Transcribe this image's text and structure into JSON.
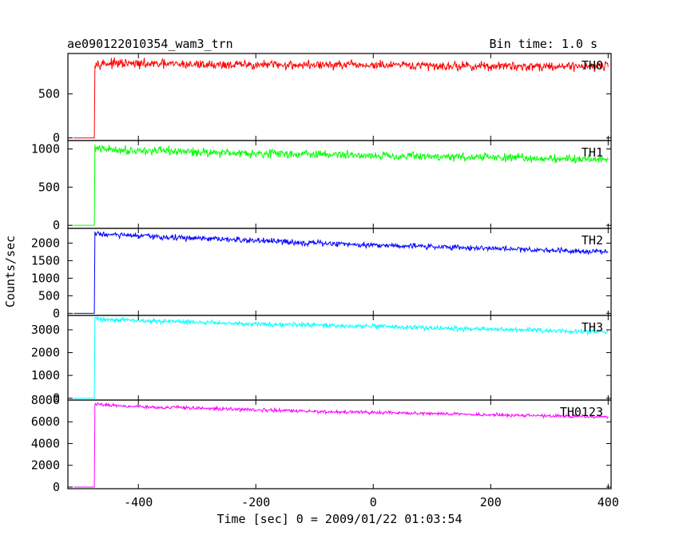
{
  "header": {
    "title": "ae090122010354_wam3_trn",
    "bin_time": "Bin time: 1.0 s"
  },
  "chart_data": {
    "type": "line",
    "title": "ae090122010354_wam3_trn",
    "subtitle": "Bin time: 1.0 s",
    "xlabel": "Time [sec] 0 = 2009/01/22 01:03:54",
    "ylabel": "Counts/sec",
    "xlim": [
      -520,
      405
    ],
    "x_ticks": [
      -400,
      -200,
      0,
      200,
      400
    ],
    "grid": false,
    "panels": [
      {
        "name": "TH0",
        "color": "#ff0000",
        "ylim": [
          -30,
          960
        ],
        "y_ticks": [
          0,
          500
        ],
        "series": [
          {
            "name": "TH0",
            "x": [
              -510,
              -475,
              -474,
              -470,
              -400,
              -300,
              -200,
              -100,
              0,
              100,
              200,
              300,
              400
            ],
            "values": [
              0,
              0,
              860,
              850,
              840,
              835,
              830,
              830,
              825,
              820,
              815,
              815,
              820
            ]
          }
        ]
      },
      {
        "name": "TH1",
        "color": "#00ff00",
        "ylim": [
          -40,
          1110
        ],
        "y_ticks": [
          0,
          500,
          1000
        ],
        "series": [
          {
            "name": "TH1",
            "x": [
              -510,
              -475,
              -474,
              -470,
              -400,
              -300,
              -200,
              -100,
              0,
              100,
              200,
              300,
              400
            ],
            "values": [
              0,
              0,
              1020,
              1000,
              980,
              960,
              945,
              930,
              915,
              900,
              890,
              875,
              865
            ]
          }
        ]
      },
      {
        "name": "TH2",
        "color": "#0000ff",
        "ylim": [
          -60,
          2420
        ],
        "y_ticks": [
          0,
          500,
          1000,
          1500,
          2000
        ],
        "series": [
          {
            "name": "TH2",
            "x": [
              -510,
              -475,
              -474,
              -470,
              -400,
              -300,
              -200,
              -100,
              0,
              100,
              200,
              300,
              400
            ],
            "values": [
              0,
              0,
              2280,
              2260,
              2200,
              2130,
              2070,
              2000,
              1950,
              1900,
              1850,
              1800,
              1760
            ]
          }
        ]
      },
      {
        "name": "TH3",
        "color": "#00ffff",
        "ylim": [
          -80,
          3630
        ],
        "y_ticks": [
          0,
          1000,
          2000,
          3000
        ],
        "series": [
          {
            "name": "TH3",
            "x": [
              -510,
              -475,
              -474,
              -470,
              -400,
              -300,
              -200,
              -100,
              0,
              100,
              200,
              300,
              400
            ],
            "values": [
              0,
              0,
              3520,
              3480,
              3400,
              3330,
              3260,
              3200,
              3140,
              3080,
              3020,
              2960,
              2910
            ]
          }
        ]
      },
      {
        "name": "TH0123",
        "color": "#ff00ff",
        "ylim": [
          -150,
          8000
        ],
        "y_ticks": [
          0,
          2000,
          4000,
          6000,
          8000
        ],
        "series": [
          {
            "name": "TH0123",
            "x": [
              -510,
              -475,
              -474,
              -470,
              -400,
              -300,
              -200,
              -100,
              0,
              100,
              200,
              300,
              400
            ],
            "values": [
              0,
              0,
              7650,
              7600,
              7400,
              7250,
              7100,
              6950,
              6850,
              6750,
              6650,
              6550,
              6450
            ]
          }
        ]
      }
    ]
  }
}
